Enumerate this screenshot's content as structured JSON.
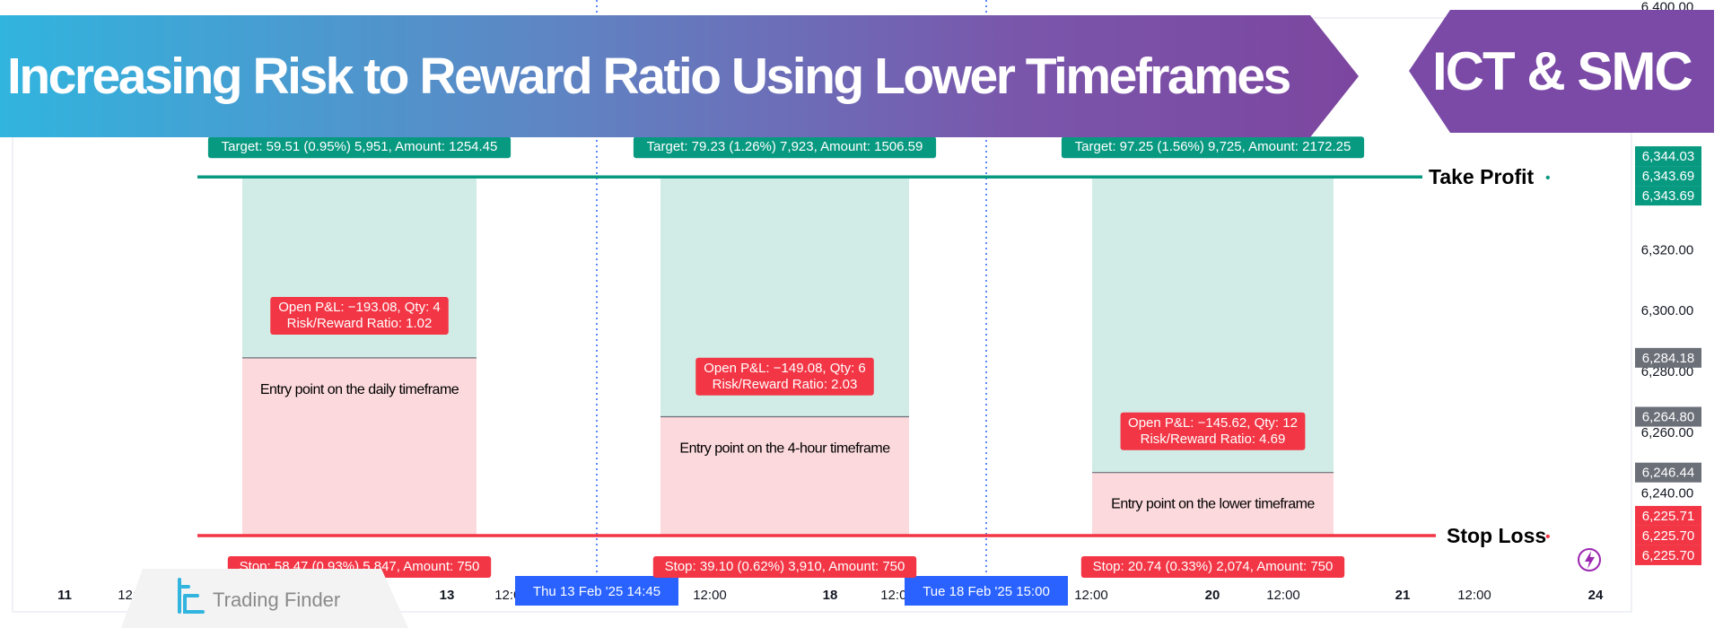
{
  "banner": {
    "title": "Increasing Risk to Reward Ratio Using Lower Timeframes",
    "badge": "ICT & SMC"
  },
  "logo": {
    "text": "Trading Finder"
  },
  "chart_data": {
    "type": "position-tool",
    "ylim": [
      6213,
      6396
    ],
    "y_ticks": [
      6400,
      6320,
      6300,
      6280,
      6260,
      6240
    ],
    "y_tick_labels": [
      "6,400.00",
      "6,320.00",
      "6,300.00",
      "6,280.00",
      "6,260.00",
      "6,240.00"
    ],
    "x_ticks": [
      "11",
      "12:00",
      "13",
      "12:00",
      "12:00",
      "18",
      "12:00",
      "12:00",
      "20",
      "12:00",
      "21",
      "12:00",
      "24"
    ],
    "x_crosshair_labels": [
      "Thu 13 Feb '25   14:45",
      "Tue 18 Feb '25   15:00"
    ],
    "take_profit": {
      "label": "Take Profit",
      "price": 6343.69
    },
    "stop_loss": {
      "label": "Stop Loss",
      "price": 6225.7
    },
    "positions": [
      {
        "entry": 6284.18,
        "target_label": "Target: 59.51 (0.95%) 5,951, Amount: 1254.45",
        "pnl_label": "Open P&L: −193.08, Qty: 4",
        "rr_label": "Risk/Reward Ratio: 1.02",
        "stop_label": "Stop: 58.47 (0.93%) 5,847, Amount: 750",
        "entry_note": "Entry point on the daily timeframe",
        "pnl_price": 6298
      },
      {
        "entry": 6264.8,
        "target_label": "Target: 79.23 (1.26%) 7,923, Amount: 1506.59",
        "pnl_label": "Open P&L: −149.08, Qty: 6",
        "rr_label": "Risk/Reward Ratio: 2.03",
        "stop_label": "Stop: 39.10 (0.62%) 3,910, Amount: 750",
        "entry_note": "Entry point on the 4-hour timeframe",
        "pnl_price": 6278
      },
      {
        "entry": 6246.44,
        "target_label": "Target: 97.25 (1.56%) 9,725, Amount: 2172.25",
        "pnl_label": "Open P&L: −145.62, Qty: 12",
        "rr_label": "Risk/Reward Ratio: 4.69",
        "stop_label": "Stop: 20.74 (0.33%) 2,074, Amount: 750",
        "entry_note": "Entry point on the lower timeframe",
        "pnl_price": 6260
      }
    ],
    "price_labels": [
      {
        "text": "6,344.03",
        "price": 6344.03,
        "color": "#089981"
      },
      {
        "text": "6,343.69",
        "price": 6343.69,
        "color": "#089981"
      },
      {
        "text": "6,343.69",
        "price": 6343.69,
        "color": "#089981"
      },
      {
        "text": "6,284.18",
        "price": 6284.18,
        "color": "#6b6f78"
      },
      {
        "text": "6,264.80",
        "price": 6264.8,
        "color": "#6b6f78"
      },
      {
        "text": "6,246.44",
        "price": 6246.44,
        "color": "#6b6f78"
      },
      {
        "text": "6,225.71",
        "price": 6225.71,
        "color": "#f23645"
      },
      {
        "text": "6,225.70",
        "price": 6225.7,
        "color": "#f23645"
      },
      {
        "text": "6,225.70",
        "price": 6225.7,
        "color": "#f23645"
      }
    ],
    "colors": {
      "take_profit": "#089981",
      "stop_loss": "#f23645",
      "profit_zone": "#d1ece6",
      "loss_zone": "#fcd9dc",
      "crosshair": "#2962ff"
    }
  }
}
